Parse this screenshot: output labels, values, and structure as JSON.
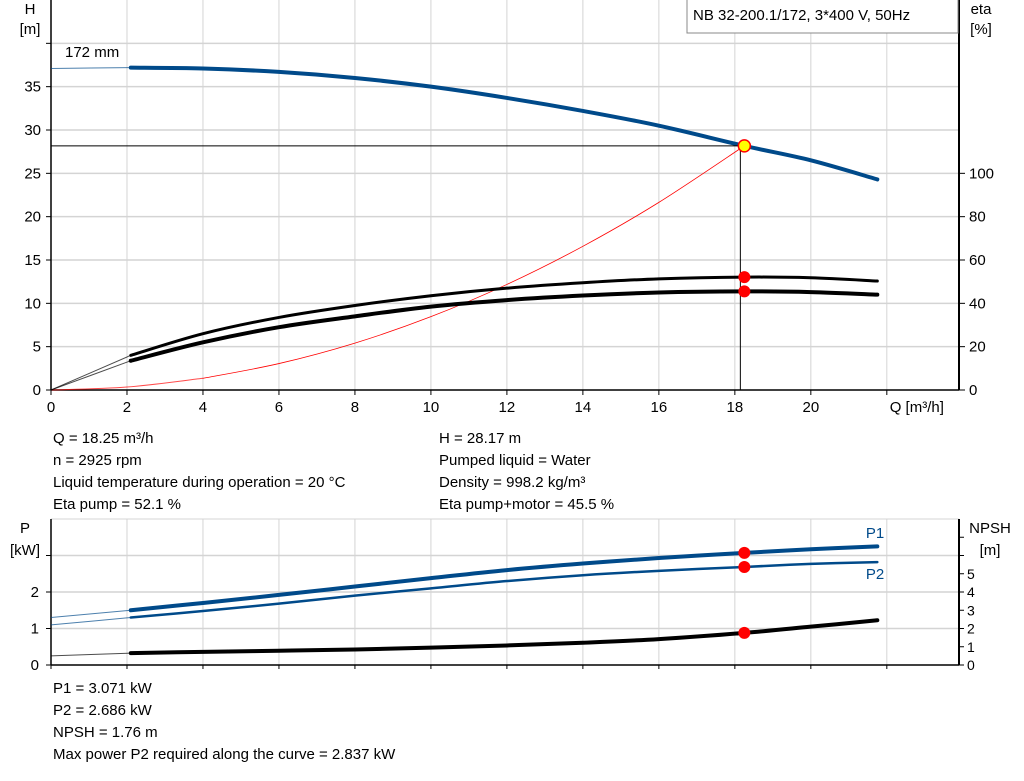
{
  "chart_data": [
    {
      "type": "line",
      "title": "NB 32-200.1/172, 3*400 V, 50Hz",
      "xlabel": "Q [m³/h]",
      "ylabel_left": [
        "H",
        "[m]"
      ],
      "ylabel_right": [
        "eta",
        "[%]"
      ],
      "xlim": [
        0,
        23.9
      ],
      "ylim_left": [
        0,
        45
      ],
      "ylim_right": [
        0,
        180
      ],
      "x_ticks": [
        "0",
        "2",
        "4",
        "6",
        "8",
        "10",
        "12",
        "14",
        "16",
        "18",
        "20"
      ],
      "y_ticks_left": [
        "0",
        "5",
        "10",
        "15",
        "20",
        "25",
        "30",
        "35"
      ],
      "y_ticks_right": [
        "0",
        "20",
        "40",
        "60",
        "80",
        "100"
      ],
      "grid": true,
      "curve_label": "172 mm",
      "series": [
        {
          "key": "H",
          "axis": "left",
          "color": "#004a8a",
          "points": [
            [
              0,
              37.1
            ],
            [
              2.1,
              37.2
            ],
            [
              4,
              37.1
            ],
            [
              6,
              36.7
            ],
            [
              8,
              36.0
            ],
            [
              10,
              35.0
            ],
            [
              12,
              33.7
            ],
            [
              14,
              32.2
            ],
            [
              16,
              30.5
            ],
            [
              18.25,
              28.17
            ],
            [
              20,
              26.5
            ],
            [
              21.75,
              24.3
            ]
          ]
        },
        {
          "key": "eta_pump",
          "axis": "right",
          "color": "#000000",
          "points": [
            [
              0,
              0
            ],
            [
              2.1,
              16
            ],
            [
              4,
              26
            ],
            [
              6,
              33.5
            ],
            [
              8,
              39
            ],
            [
              10,
              43.5
            ],
            [
              12,
              47
            ],
            [
              14,
              49.5
            ],
            [
              16,
              51.3
            ],
            [
              18.25,
              52.1
            ],
            [
              20,
              51.8
            ],
            [
              21.75,
              50.3
            ]
          ]
        },
        {
          "key": "eta_pump_motor",
          "axis": "right",
          "color": "#000000",
          "points": [
            [
              0,
              0
            ],
            [
              2.1,
              13.5
            ],
            [
              4,
              22
            ],
            [
              6,
              29
            ],
            [
              8,
              34
            ],
            [
              10,
              38.5
            ],
            [
              12,
              41.5
            ],
            [
              14,
              43.6
            ],
            [
              16,
              45
            ],
            [
              18.25,
              45.5
            ],
            [
              20,
              45.2
            ],
            [
              21.75,
              44
            ]
          ]
        },
        {
          "key": "system_curve",
          "axis": "left",
          "color": "#ff0000",
          "points": [
            [
              0,
              0
            ],
            [
              2,
              0.34
            ],
            [
              4,
              1.35
            ],
            [
              6,
              3.05
            ],
            [
              8,
              5.41
            ],
            [
              10,
              8.46
            ],
            [
              12,
              12.18
            ],
            [
              14,
              16.58
            ],
            [
              16,
              21.65
            ],
            [
              18.25,
              28.17
            ]
          ]
        }
      ],
      "duty_point": {
        "Q": 18.25,
        "H": 28.17,
        "eta_pump": 52.1,
        "eta_pump_motor": 45.5
      }
    },
    {
      "type": "line",
      "xlim": [
        0,
        23.9
      ],
      "ylabel_left": [
        "P",
        "[kW]"
      ],
      "ylabel_right": [
        "NPSH",
        "[m]"
      ],
      "ylim_left": [
        0,
        4.0
      ],
      "ylim_right": [
        0,
        8
      ],
      "y_ticks_left": [
        "0",
        "1",
        "2"
      ],
      "y_ticks_right": [
        "0",
        "1",
        "2",
        "3",
        "4",
        "5"
      ],
      "grid": true,
      "series": [
        {
          "name": "P1",
          "axis": "left",
          "color": "#004a8a",
          "points": [
            [
              0,
              1.3
            ],
            [
              2.1,
              1.5
            ],
            [
              4,
              1.7
            ],
            [
              6,
              1.92
            ],
            [
              8,
              2.15
            ],
            [
              10,
              2.38
            ],
            [
              12,
              2.6
            ],
            [
              14,
              2.78
            ],
            [
              16,
              2.93
            ],
            [
              18.25,
              3.071
            ],
            [
              20,
              3.17
            ],
            [
              21.75,
              3.25
            ]
          ]
        },
        {
          "name": "P2",
          "axis": "left",
          "color": "#004a8a",
          "points": [
            [
              0,
              1.1
            ],
            [
              2.1,
              1.3
            ],
            [
              4,
              1.48
            ],
            [
              6,
              1.68
            ],
            [
              8,
              1.9
            ],
            [
              10,
              2.1
            ],
            [
              12,
              2.3
            ],
            [
              14,
              2.46
            ],
            [
              16,
              2.58
            ],
            [
              18.25,
              2.686
            ],
            [
              20,
              2.77
            ],
            [
              21.75,
              2.82
            ]
          ]
        },
        {
          "key": "NPSH",
          "axis": "right",
          "color": "#000000",
          "points": [
            [
              0,
              0.5
            ],
            [
              2.1,
              0.65
            ],
            [
              4,
              0.72
            ],
            [
              6,
              0.78
            ],
            [
              8,
              0.85
            ],
            [
              10,
              0.95
            ],
            [
              12,
              1.07
            ],
            [
              14,
              1.22
            ],
            [
              16,
              1.42
            ],
            [
              18.25,
              1.76
            ],
            [
              20,
              2.1
            ],
            [
              21.75,
              2.45
            ]
          ]
        }
      ],
      "duty_point": {
        "Q": 18.25,
        "P1": 3.071,
        "P2": 2.686,
        "NPSH": 1.76
      }
    }
  ],
  "info_top": {
    "left": [
      "Q = 18.25 m³/h",
      "n = 2925 rpm",
      "Liquid temperature during operation = 20 °C",
      "Eta pump = 52.1 %"
    ],
    "right": [
      "H = 28.17 m",
      "Pumped liquid = Water",
      "Density = 998.2 kg/m³",
      "Eta pump+motor = 45.5 %"
    ]
  },
  "info_bottom": [
    "P1 = 3.071 kW",
    "P2 = 2.686 kW",
    "NPSH = 1.76 m",
    "Max power P2 required along the curve = 2.837 kW"
  ]
}
